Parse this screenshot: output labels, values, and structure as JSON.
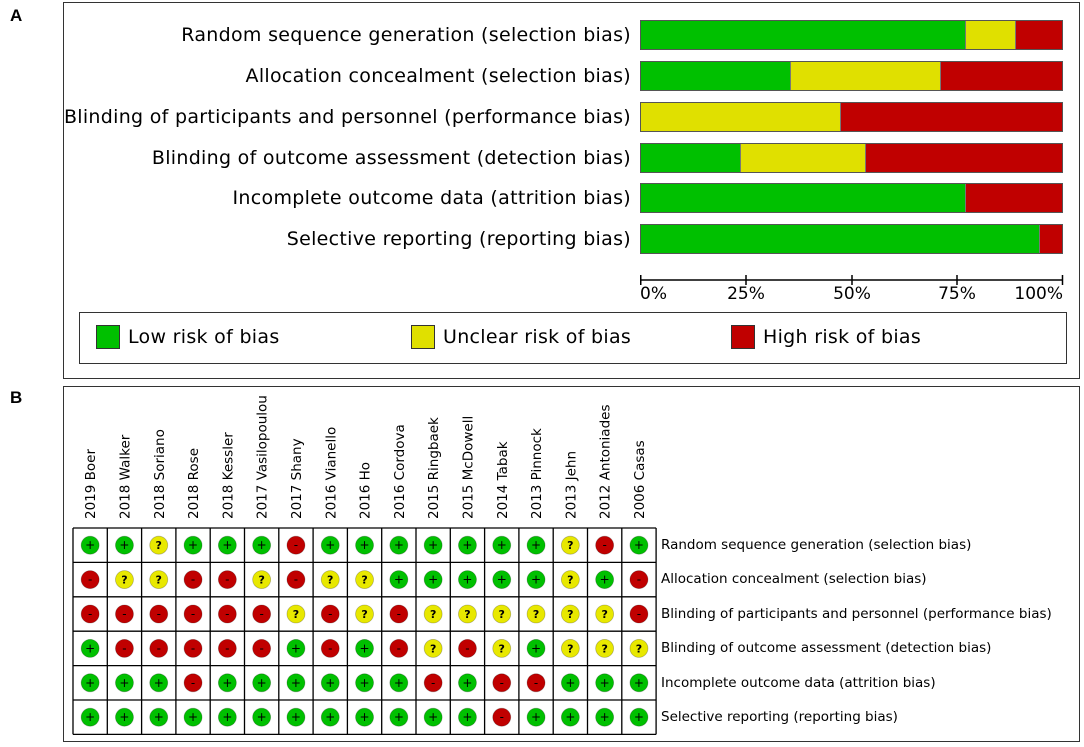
{
  "panels": {
    "a": "A",
    "b": "B"
  },
  "chart_data": [
    {
      "type": "bar",
      "subtype": "stacked-horizontal-100",
      "title": "",
      "categories": [
        "Random sequence generation (selection bias)",
        "Allocation concealment (selection bias)",
        "Blinding of participants and personnel (performance bias)",
        "Blinding of outcome assessment (detection bias)",
        "Incomplete outcome data (attrition bias)",
        "Selective reporting (reporting bias)"
      ],
      "series": [
        {
          "name": "Low risk of bias",
          "color": "#00c000",
          "values": [
            76.5,
            35.3,
            0,
            23.5,
            76.5,
            94.1
          ]
        },
        {
          "name": "Unclear risk of bias",
          "color": "#e0e000",
          "values": [
            11.8,
            35.3,
            47.1,
            29.4,
            0,
            0
          ]
        },
        {
          "name": "High risk of bias",
          "color": "#c00000",
          "values": [
            11.8,
            29.4,
            52.9,
            47.1,
            23.5,
            5.9
          ]
        }
      ],
      "xlim": [
        0,
        100
      ],
      "xticks": [
        "0%",
        "25%",
        "50%",
        "75%",
        "100%"
      ],
      "xlabel": "",
      "ylabel": "",
      "legend": "bottom"
    },
    {
      "type": "table",
      "subtype": "risk-of-bias-summary",
      "studies": [
        "2019 Boer",
        "2018 Walker",
        "2018 Soriano",
        "2018 Rose",
        "2018 Kessler",
        "2017 Vasilopoulou",
        "2017 Shany",
        "2016 Vianello",
        "2016 Ho",
        "2016 Cordova",
        "2015 Ringbaek",
        "2015 McDowell",
        "2014 Tabak",
        "2013 Pinnock",
        "2013 Jehn",
        "2012 Antoniades",
        "2006 Casas"
      ],
      "domains": [
        "Random sequence generation (selection bias)",
        "Allocation concealment (selection bias)",
        "Blinding of participants and personnel (performance bias)",
        "Blinding of outcome assessment (detection bias)",
        "Incomplete outcome data (attrition bias)",
        "Selective reporting (reporting bias)"
      ],
      "judgements": [
        [
          "+",
          "+",
          "?",
          "+",
          "+",
          "+",
          "-",
          "+",
          "+",
          "+",
          "+",
          "+",
          "+",
          "+",
          "?",
          "-",
          "+"
        ],
        [
          "-",
          "?",
          "?",
          "-",
          "-",
          "?",
          "-",
          "?",
          "?",
          "+",
          "+",
          "+",
          "+",
          "+",
          "?",
          "+",
          "-"
        ],
        [
          "-",
          "-",
          "-",
          "-",
          "-",
          "-",
          "?",
          "-",
          "?",
          "-",
          "?",
          "?",
          "?",
          "?",
          "?",
          "?",
          "-"
        ],
        [
          "+",
          "-",
          "-",
          "-",
          "-",
          "-",
          "+",
          "-",
          "+",
          "-",
          "?",
          "-",
          "?",
          "+",
          "?",
          "?",
          "?"
        ],
        [
          "+",
          "+",
          "+",
          "-",
          "+",
          "+",
          "+",
          "+",
          "+",
          "+",
          "-",
          "+",
          "-",
          "-",
          "+",
          "+",
          "+"
        ],
        [
          "+",
          "+",
          "+",
          "+",
          "+",
          "+",
          "+",
          "+",
          "+",
          "+",
          "+",
          "+",
          "-",
          "+",
          "+",
          "+",
          "+"
        ]
      ],
      "symbols": {
        "low": "+",
        "unclear": "?",
        "high": "-"
      },
      "colors": {
        "low": "#00c000",
        "unclear": "#e8e800",
        "high": "#c00000"
      }
    }
  ]
}
